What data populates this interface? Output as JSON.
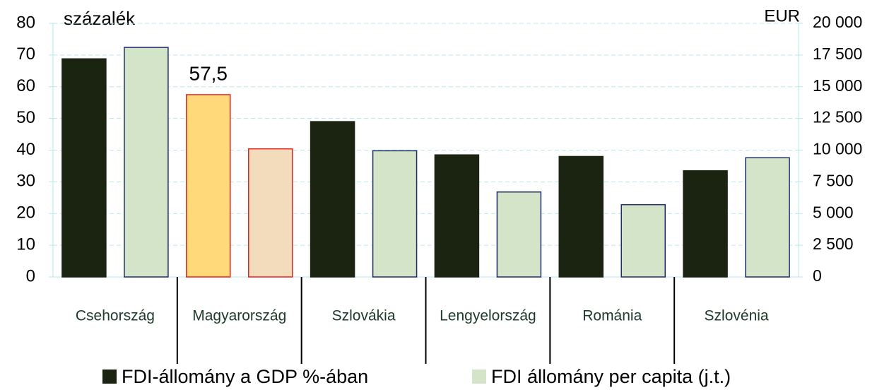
{
  "chart_data": {
    "type": "bar",
    "ylabel": "százalék",
    "y2label": "EUR",
    "categories": [
      "Csehország",
      "Magyarország",
      "Szlovákia",
      "Lengyelország",
      "Románia",
      "Szlovénia"
    ],
    "series": [
      {
        "name": "FDI-állomány a GDP %-ában",
        "color": "#1a2410",
        "colors": [
          "#1a2410",
          "#ffd97a",
          "#1a2410",
          "#1a2410",
          "#1a2410",
          "#1a2410"
        ],
        "edge_colors": [
          "#1a2410",
          "#e8231e",
          "#1a2410",
          "#1a2410",
          "#1a2410",
          "#1a2410"
        ],
        "values": [
          68.8,
          57.5,
          49,
          38.5,
          38,
          33.5
        ],
        "value_labels": [
          null,
          "57,5",
          null,
          null,
          null,
          null
        ]
      },
      {
        "name": "FDI állomány per capita (j.t.)",
        "color": "#d3e4c8",
        "axis": "y2",
        "colors": [
          "#d3e4c8",
          "#f3dcbb",
          "#d3e4c8",
          "#d3e4c8",
          "#d3e4c8",
          "#d3e4c8"
        ],
        "edge_colors": [
          "#1f2d6b",
          "#e8231e",
          "#1f2d6b",
          "#1f2d6b",
          "#1f2d6b",
          "#1f2d6b"
        ],
        "values": [
          18100,
          10100,
          9950,
          6700,
          5700,
          9400
        ]
      }
    ],
    "ylim": [
      0,
      80
    ],
    "yticks": [
      0,
      10,
      20,
      30,
      40,
      50,
      60,
      70,
      80
    ],
    "y2lim": [
      0,
      20000
    ],
    "y2ticks": [
      0,
      {
        "value": 2500,
        "label": "2 500"
      },
      {
        "value": 5000,
        "label": "5 000"
      },
      {
        "value": 7500,
        "label": "7 500"
      },
      {
        "value": 10000,
        "label": "10 000"
      },
      {
        "value": 12500,
        "label": "12 500"
      },
      {
        "value": 15000,
        "label": "15 000"
      },
      {
        "value": 17500,
        "label": "17 500"
      },
      {
        "value": 20000,
        "label": "20 000"
      }
    ],
    "grid": true,
    "legend": "bottom"
  }
}
